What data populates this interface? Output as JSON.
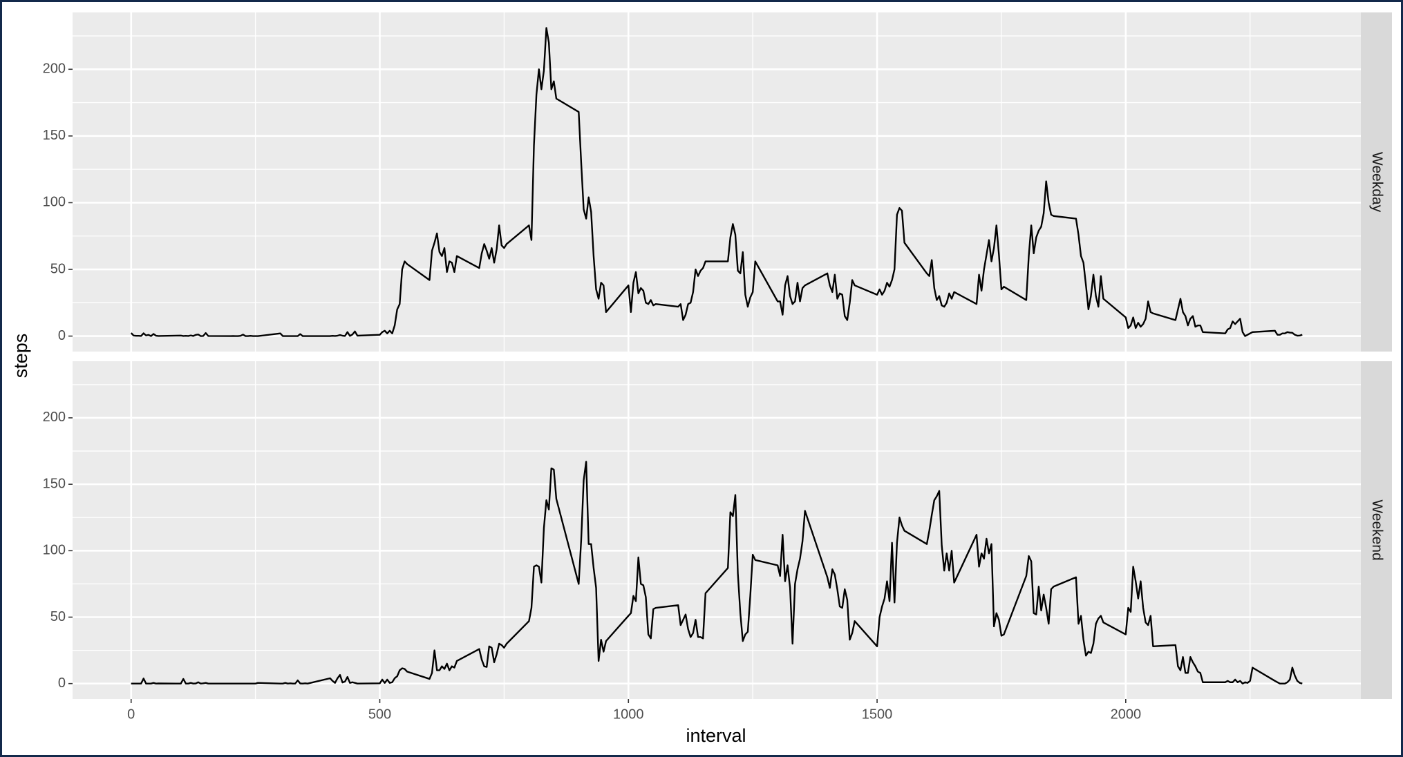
{
  "chart_data": {
    "type": "line",
    "x_label": "interval",
    "y_label": "steps",
    "color": "#000000",
    "grid": true,
    "xlim": [
      -117.75,
      2472.75
    ],
    "xticks": [
      0,
      500,
      1000,
      1500,
      2000
    ],
    "x_minor_ticks": [
      250,
      750,
      1250,
      1750,
      2250
    ],
    "ylim": [
      -11.6,
      242.6
    ],
    "yticks": [
      0,
      50,
      100,
      150,
      200
    ],
    "y_minor_ticks": [
      25,
      75,
      125,
      175,
      225
    ],
    "x": [
      0,
      5,
      10,
      15,
      20,
      25,
      30,
      35,
      40,
      45,
      50,
      55,
      100,
      105,
      110,
      115,
      120,
      125,
      130,
      135,
      140,
      145,
      150,
      155,
      200,
      205,
      210,
      215,
      220,
      225,
      230,
      235,
      240,
      245,
      250,
      255,
      300,
      305,
      310,
      315,
      320,
      325,
      330,
      335,
      340,
      345,
      350,
      355,
      400,
      405,
      410,
      415,
      420,
      425,
      430,
      435,
      440,
      445,
      450,
      455,
      500,
      505,
      510,
      515,
      520,
      525,
      530,
      535,
      540,
      545,
      550,
      555,
      600,
      605,
      610,
      615,
      620,
      625,
      630,
      635,
      640,
      645,
      650,
      655,
      700,
      705,
      710,
      715,
      720,
      725,
      730,
      735,
      740,
      745,
      750,
      755,
      800,
      805,
      810,
      815,
      820,
      825,
      830,
      835,
      840,
      845,
      850,
      855,
      900,
      905,
      910,
      915,
      920,
      925,
      930,
      935,
      940,
      945,
      950,
      955,
      1000,
      1005,
      1010,
      1015,
      1020,
      1025,
      1030,
      1035,
      1040,
      1045,
      1050,
      1055,
      1100,
      1105,
      1110,
      1115,
      1120,
      1125,
      1130,
      1135,
      1140,
      1145,
      1150,
      1155,
      1200,
      1205,
      1210,
      1215,
      1220,
      1225,
      1230,
      1235,
      1240,
      1245,
      1250,
      1255,
      1300,
      1305,
      1310,
      1315,
      1320,
      1325,
      1330,
      1335,
      1340,
      1345,
      1350,
      1355,
      1400,
      1405,
      1410,
      1415,
      1420,
      1425,
      1430,
      1435,
      1440,
      1445,
      1450,
      1455,
      1500,
      1505,
      1510,
      1515,
      1520,
      1525,
      1530,
      1535,
      1540,
      1545,
      1550,
      1555,
      1600,
      1605,
      1610,
      1615,
      1620,
      1625,
      1630,
      1635,
      1640,
      1645,
      1650,
      1655,
      1700,
      1705,
      1710,
      1715,
      1720,
      1725,
      1730,
      1735,
      1740,
      1745,
      1750,
      1755,
      1800,
      1805,
      1810,
      1815,
      1820,
      1825,
      1830,
      1835,
      1840,
      1845,
      1850,
      1855,
      1900,
      1905,
      1910,
      1915,
      1920,
      1925,
      1930,
      1935,
      1940,
      1945,
      1950,
      1955,
      2000,
      2005,
      2010,
      2015,
      2020,
      2025,
      2030,
      2035,
      2040,
      2045,
      2050,
      2055,
      2100,
      2105,
      2110,
      2115,
      2120,
      2125,
      2130,
      2135,
      2140,
      2145,
      2150,
      2155,
      2200,
      2205,
      2210,
      2215,
      2220,
      2225,
      2230,
      2235,
      2240,
      2245,
      2250,
      2255,
      2300,
      2305,
      2310,
      2315,
      2320,
      2325,
      2330,
      2335,
      2340,
      2345,
      2350,
      2355
    ],
    "facets": [
      {
        "name": "Weekday",
        "values": [
          2.3,
          0.4,
          0.2,
          0.2,
          0.1,
          2.1,
          0.5,
          0.9,
          0,
          1.6,
          0.3,
          0.1,
          0.4,
          0.1,
          0.2,
          0.1,
          0.5,
          0.1,
          0.9,
          1.2,
          0,
          0.1,
          2.3,
          0.1,
          0,
          0.1,
          0,
          0,
          0.2,
          1.1,
          0,
          0,
          0.2,
          0,
          0,
          0,
          2,
          0,
          0,
          0,
          0,
          0,
          0,
          0,
          1.5,
          0,
          0,
          0,
          0,
          0.2,
          0.1,
          0.3,
          0.8,
          0.3,
          0.1,
          3,
          0.1,
          1.2,
          3.5,
          0.3,
          1,
          3,
          4,
          2,
          4,
          2,
          8,
          20,
          24,
          50,
          56,
          54,
          42,
          64,
          70,
          77,
          63,
          60,
          66,
          48,
          56,
          55,
          48,
          60,
          51,
          62,
          69,
          64,
          58,
          66,
          55,
          65,
          83,
          68,
          66,
          69,
          83,
          72,
          143,
          181,
          200,
          185,
          199,
          231,
          220,
          185,
          191,
          178,
          168,
          130,
          95,
          88,
          104,
          93,
          60,
          35,
          28,
          40,
          38,
          18,
          38,
          18,
          40,
          48,
          32,
          36,
          34,
          25,
          24,
          27,
          23,
          24,
          22,
          24,
          12,
          16,
          24,
          25,
          33,
          50,
          45,
          49,
          51,
          56,
          56,
          74,
          84,
          76,
          49,
          47,
          63,
          31,
          22,
          29,
          33,
          56,
          26,
          26,
          16,
          38,
          45,
          30,
          24,
          26,
          40,
          26,
          36,
          38,
          47,
          38,
          33,
          46,
          28,
          32,
          31,
          15,
          12,
          25,
          42,
          38,
          31,
          35,
          31,
          34,
          40,
          37,
          42,
          50,
          91,
          96,
          94,
          70,
          47,
          45,
          57,
          36,
          27,
          30,
          23,
          22,
          25,
          32,
          28,
          33,
          24,
          46,
          34,
          50,
          61,
          72,
          56,
          66,
          83,
          61,
          35,
          37,
          27,
          60,
          83,
          62,
          74,
          79,
          82,
          92,
          116,
          100,
          91,
          90,
          88,
          76,
          60,
          55,
          38,
          20,
          30,
          46,
          30,
          22,
          45,
          28,
          14,
          6,
          8,
          14,
          6,
          10,
          7,
          9,
          13,
          26,
          18,
          17,
          12,
          20,
          28,
          18,
          15,
          8,
          13,
          15,
          7,
          8,
          8,
          3,
          2,
          5,
          6,
          11,
          9,
          11,
          13,
          3,
          0,
          1,
          2,
          3,
          4,
          1,
          1,
          2,
          2,
          3,
          2.6,
          2.5,
          1,
          0.3,
          0.4,
          1
        ]
      },
      {
        "name": "Weekend",
        "values": [
          0,
          0,
          0,
          0,
          0,
          3.8,
          0,
          0,
          0,
          0.5,
          0,
          0.1,
          0,
          3.5,
          0,
          0,
          0.5,
          0,
          0.1,
          1,
          0,
          0.2,
          0.5,
          0,
          0,
          0,
          0,
          0,
          0,
          0,
          0,
          0,
          0,
          0,
          0,
          0.5,
          0,
          0,
          0.5,
          0,
          0.2,
          0,
          0,
          2.4,
          0.1,
          0,
          0.2,
          0,
          4,
          2,
          0.5,
          4,
          6.5,
          0.8,
          1.5,
          5,
          0.5,
          1,
          0.5,
          0,
          0.2,
          3,
          0.5,
          3,
          0.5,
          1,
          4,
          5.5,
          10,
          11.5,
          11,
          9,
          3.5,
          8,
          25,
          10,
          10,
          13,
          11,
          15,
          10,
          13,
          12,
          17,
          26,
          18,
          13,
          12.5,
          28,
          27,
          16,
          22,
          30,
          29,
          27,
          30,
          47,
          57,
          88,
          89,
          88,
          76,
          117,
          138,
          131,
          162,
          161,
          139,
          75,
          108,
          153,
          167,
          105,
          105,
          87,
          72,
          17,
          33,
          24,
          32,
          51,
          53,
          66,
          62,
          95,
          75,
          74,
          65,
          37,
          34,
          56,
          57,
          59,
          44,
          48,
          52,
          41,
          35,
          38,
          48,
          35,
          35,
          34,
          68,
          87,
          129,
          126,
          142,
          83,
          53,
          32,
          37,
          39,
          66,
          97,
          93,
          89,
          81,
          112,
          77,
          89,
          72,
          30,
          75,
          86,
          94,
          107,
          130,
          80,
          72,
          86,
          82,
          71,
          58,
          57,
          71,
          63,
          33,
          38,
          47,
          28,
          50,
          58,
          64,
          77,
          62,
          106,
          61,
          106,
          125,
          119,
          115,
          105,
          115,
          127,
          138,
          141,
          145,
          104,
          85,
          98,
          85,
          100,
          76,
          112,
          88,
          98,
          94,
          109,
          98,
          105,
          43,
          53,
          48,
          36,
          37,
          81,
          96,
          92,
          53,
          52,
          73,
          55,
          67,
          57,
          45,
          71,
          73,
          80,
          45,
          51,
          33,
          21,
          24,
          23,
          30,
          45,
          49,
          51,
          46,
          37,
          57,
          54,
          88,
          77,
          64,
          77,
          57,
          46,
          44,
          51,
          28,
          29,
          13,
          10,
          20,
          8,
          8,
          20,
          16,
          13,
          9,
          8,
          1,
          1,
          2,
          1,
          1,
          3,
          1,
          2,
          0,
          1,
          0.5,
          2,
          12,
          2,
          1,
          0,
          0,
          0,
          1,
          3,
          12,
          6,
          2,
          0.5,
          0
        ]
      }
    ]
  }
}
